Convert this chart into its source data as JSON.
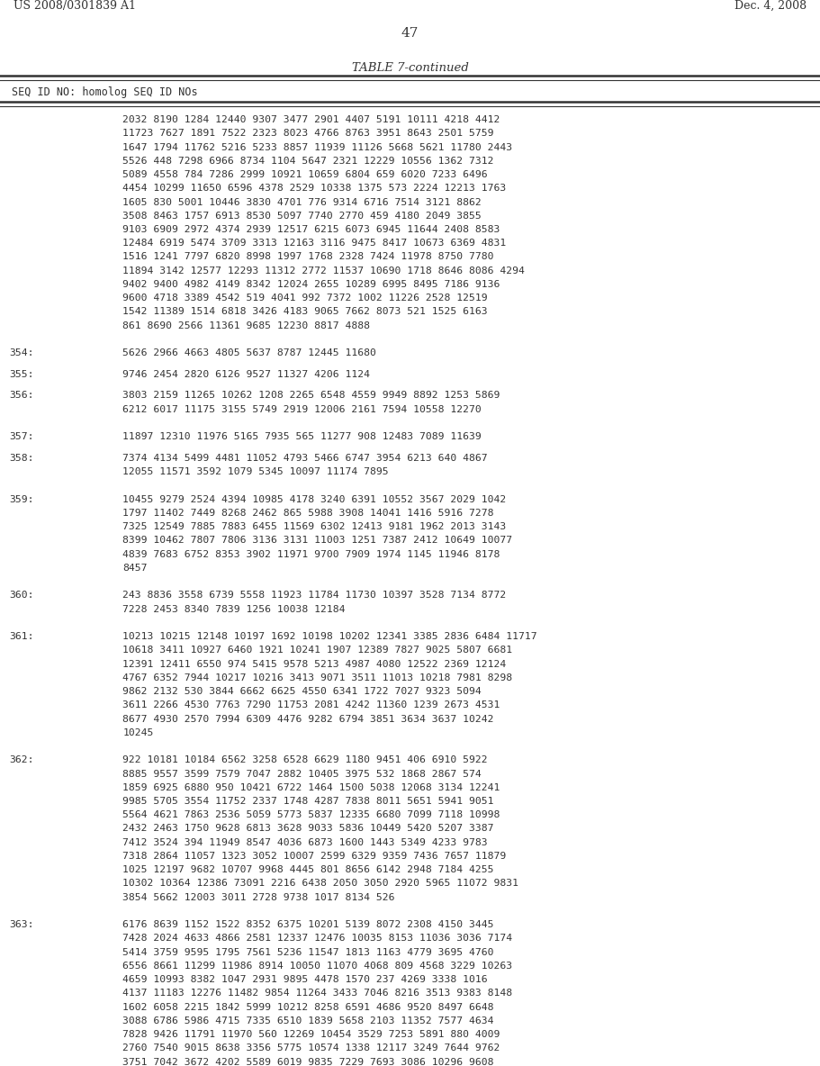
{
  "title_left": "US 2008/0301839 A1",
  "title_right": "Dec. 4, 2008",
  "page_number": "47",
  "table_title": "TABLE 7-continued",
  "header": "SEQ ID NO: homolog SEQ ID NOs",
  "background_color": "#ffffff",
  "text_color": "#333333",
  "rows": [
    {
      "seq_id": null,
      "data": "2032 8190 1284 12440 9307 3477 2901 4407 5191 10111 4218 4412"
    },
    {
      "seq_id": null,
      "data": "11723 7627 1891 7522 2323 8023 4766 8763 3951 8643 2501 5759"
    },
    {
      "seq_id": null,
      "data": "1647 1794 11762 5216 5233 8857 11939 11126 5668 5621 11780 2443"
    },
    {
      "seq_id": null,
      "data": "5526 448 7298 6966 8734 1104 5647 2321 12229 10556 1362 7312"
    },
    {
      "seq_id": null,
      "data": "5089 4558 784 7286 2999 10921 10659 6804 659 6020 7233 6496"
    },
    {
      "seq_id": null,
      "data": "4454 10299 11650 6596 4378 2529 10338 1375 573 2224 12213 1763"
    },
    {
      "seq_id": null,
      "data": "1605 830 5001 10446 3830 4701 776 9314 6716 7514 3121 8862"
    },
    {
      "seq_id": null,
      "data": "3508 8463 1757 6913 8530 5097 7740 2770 459 4180 2049 3855"
    },
    {
      "seq_id": null,
      "data": "9103 6909 2972 4374 2939 12517 6215 6073 6945 11644 2408 8583"
    },
    {
      "seq_id": null,
      "data": "12484 6919 5474 3709 3313 12163 3116 9475 8417 10673 6369 4831"
    },
    {
      "seq_id": null,
      "data": "1516 1241 7797 6820 8998 1997 1768 2328 7424 11978 8750 7780"
    },
    {
      "seq_id": null,
      "data": "11894 3142 12577 12293 11312 2772 11537 10690 1718 8646 8086 4294"
    },
    {
      "seq_id": null,
      "data": "9402 9400 4982 4149 8342 12024 2655 10289 6995 8495 7186 9136"
    },
    {
      "seq_id": null,
      "data": "9600 4718 3389 4542 519 4041 992 7372 1002 11226 2528 12519"
    },
    {
      "seq_id": null,
      "data": "1542 11389 1514 6818 3426 4183 9065 7662 8073 521 1525 6163"
    },
    {
      "seq_id": null,
      "data": "861 8690 2566 11361 9685 12230 8817 4888"
    },
    {
      "seq_id": "354:",
      "data": "5626 2966 4663 4805 5637 8787 12445 11680"
    },
    {
      "seq_id": "355:",
      "data": "9746 2454 2820 6126 9527 11327 4206 1124"
    },
    {
      "seq_id": "356:",
      "data": "3803 2159 11265 10262 1208 2265 6548 4559 9949 8892 1253 5869"
    },
    {
      "seq_id": null,
      "data": "6212 6017 11175 3155 5749 2919 12006 2161 7594 10558 12270"
    },
    {
      "seq_id": "357:",
      "data": "11897 12310 11976 5165 7935 565 11277 908 12483 7089 11639"
    },
    {
      "seq_id": "358:",
      "data": "7374 4134 5499 4481 11052 4793 5466 6747 3954 6213 640 4867"
    },
    {
      "seq_id": null,
      "data": "12055 11571 3592 1079 5345 10097 11174 7895"
    },
    {
      "seq_id": "359:",
      "data": "10455 9279 2524 4394 10985 4178 3240 6391 10552 3567 2029 1042"
    },
    {
      "seq_id": null,
      "data": "1797 11402 7449 8268 2462 865 5988 3908 14041 1416 5916 7278"
    },
    {
      "seq_id": null,
      "data": "7325 12549 7885 7883 6455 11569 6302 12413 9181 1962 2013 3143"
    },
    {
      "seq_id": null,
      "data": "8399 10462 7807 7806 3136 3131 11003 1251 7387 2412 10649 10077"
    },
    {
      "seq_id": null,
      "data": "4839 7683 6752 8353 3902 11971 9700 7909 1974 1145 11946 8178"
    },
    {
      "seq_id": null,
      "data": "8457"
    },
    {
      "seq_id": "360:",
      "data": "243 8836 3558 6739 5558 11923 11784 11730 10397 3528 7134 8772"
    },
    {
      "seq_id": null,
      "data": "7228 2453 8340 7839 1256 10038 12184"
    },
    {
      "seq_id": "361:",
      "data": "10213 10215 12148 10197 1692 10198 10202 12341 3385 2836 6484 11717"
    },
    {
      "seq_id": null,
      "data": "10618 3411 10927 6460 1921 10241 1907 12389 7827 9025 5807 6681"
    },
    {
      "seq_id": null,
      "data": "12391 12411 6550 974 5415 9578 5213 4987 4080 12522 2369 12124"
    },
    {
      "seq_id": null,
      "data": "4767 6352 7944 10217 10216 3413 9071 3511 11013 10218 7981 8298"
    },
    {
      "seq_id": null,
      "data": "9862 2132 530 3844 6662 6625 4550 6341 1722 7027 9323 5094"
    },
    {
      "seq_id": null,
      "data": "3611 2266 4530 7763 7290 11753 2081 4242 11360 1239 2673 4531"
    },
    {
      "seq_id": null,
      "data": "8677 4930 2570 7994 6309 4476 9282 6794 3851 3634 3637 10242"
    },
    {
      "seq_id": null,
      "data": "10245"
    },
    {
      "seq_id": "362:",
      "data": "922 10181 10184 6562 3258 6528 6629 1180 9451 406 6910 5922"
    },
    {
      "seq_id": null,
      "data": "8885 9557 3599 7579 7047 2882 10405 3975 532 1868 2867 574"
    },
    {
      "seq_id": null,
      "data": "1859 6925 6880 950 10421 6722 1464 1500 5038 12068 3134 12241"
    },
    {
      "seq_id": null,
      "data": "9985 5705 3554 11752 2337 1748 4287 7838 8011 5651 5941 9051"
    },
    {
      "seq_id": null,
      "data": "5564 4621 7863 2536 5059 5773 5837 12335 6680 7099 7118 10998"
    },
    {
      "seq_id": null,
      "data": "2432 2463 1750 9628 6813 3628 9033 5836 10449 5420 5207 3387"
    },
    {
      "seq_id": null,
      "data": "7412 3524 394 11949 8547 4036 6873 1600 1443 5349 4233 9783"
    },
    {
      "seq_id": null,
      "data": "7318 2864 11057 1323 3052 10007 2599 6329 9359 7436 7657 11879"
    },
    {
      "seq_id": null,
      "data": "1025 12197 9682 10707 9968 4445 801 8656 6142 2948 7184 4255"
    },
    {
      "seq_id": null,
      "data": "10302 10364 12386 73091 2216 6438 2050 3050 2920 5965 11072 9831"
    },
    {
      "seq_id": null,
      "data": "3854 5662 12003 3011 2728 9738 1017 8134 526"
    },
    {
      "seq_id": "363:",
      "data": "6176 8639 1152 1522 8352 6375 10201 5139 8072 2308 4150 3445"
    },
    {
      "seq_id": null,
      "data": "7428 2024 4633 4866 2581 12337 12476 10035 8153 11036 3036 7174"
    },
    {
      "seq_id": null,
      "data": "5414 3759 9595 1795 7561 5236 11547 1813 1163 4779 3695 4760"
    },
    {
      "seq_id": null,
      "data": "6556 8661 11299 11986 8914 10050 11070 4068 809 4568 3229 10263"
    },
    {
      "seq_id": null,
      "data": "4659 10993 8382 1047 2931 9895 4478 1570 237 4269 3338 1016"
    },
    {
      "seq_id": null,
      "data": "4137 11183 12276 11482 9854 11264 3433 7046 8216 3513 9383 8148"
    },
    {
      "seq_id": null,
      "data": "1602 6058 2215 1842 5999 10212 8258 6591 4686 9520 8497 6648"
    },
    {
      "seq_id": null,
      "data": "3088 6786 5986 4715 7335 6510 1839 5658 2103 11352 7577 4634"
    },
    {
      "seq_id": null,
      "data": "7828 9426 11791 11970 560 12269 10454 3529 7253 5891 880 4009"
    },
    {
      "seq_id": null,
      "data": "2760 7540 9015 8638 3356 5775 10574 1338 12117 3249 7644 9762"
    },
    {
      "seq_id": null,
      "data": "3751 7042 3672 4202 5589 6019 9835 7229 7693 3086 10296 9608"
    }
  ]
}
